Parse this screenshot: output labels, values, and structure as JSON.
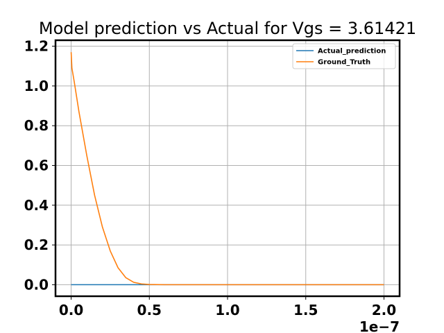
{
  "chart_data": {
    "type": "line",
    "title": "Model prediction vs Actual for Vgs = 3.61421",
    "xlabel": "",
    "ylabel": "",
    "x_offset_label": "1e−7",
    "xlim": [
      -1e-08,
      2.1e-07
    ],
    "ylim": [
      -0.058,
      1.23
    ],
    "xticks": [
      0,
      5e-08,
      1e-07,
      1.5e-07,
      2e-07
    ],
    "xtick_labels": [
      "0.0",
      "0.5",
      "1.0",
      "1.5",
      "2.0"
    ],
    "yticks": [
      0,
      0.2,
      0.4,
      0.6,
      0.8,
      1.0,
      1.2
    ],
    "ytick_labels": [
      "0.0",
      "0.2",
      "0.4",
      "0.6",
      "0.8",
      "1.0",
      "1.2"
    ],
    "grid": true,
    "legend_position": "top-right",
    "series": [
      {
        "name": "Actual_prediction",
        "color": "#1f77b4",
        "x": [
          0,
          2.5e-08,
          5e-08,
          1e-07,
          1.5e-07,
          2e-07
        ],
        "y": [
          0,
          0,
          0,
          0,
          0,
          0
        ]
      },
      {
        "name": "Ground_Truth",
        "color": "#ff7f0e",
        "x": [
          0,
          5e-10,
          2e-09,
          5e-09,
          1e-08,
          1.5e-08,
          2e-08,
          2.5e-08,
          3e-08,
          3.5e-08,
          4e-08,
          4.5e-08,
          5e-08,
          6e-08,
          1e-07,
          1.5e-07,
          2e-07
        ],
        "y": [
          1.17,
          1.09,
          1.02,
          0.87,
          0.65,
          0.45,
          0.29,
          0.17,
          0.085,
          0.035,
          0.012,
          0.004,
          0.001,
          0,
          0,
          0,
          0
        ]
      }
    ]
  }
}
